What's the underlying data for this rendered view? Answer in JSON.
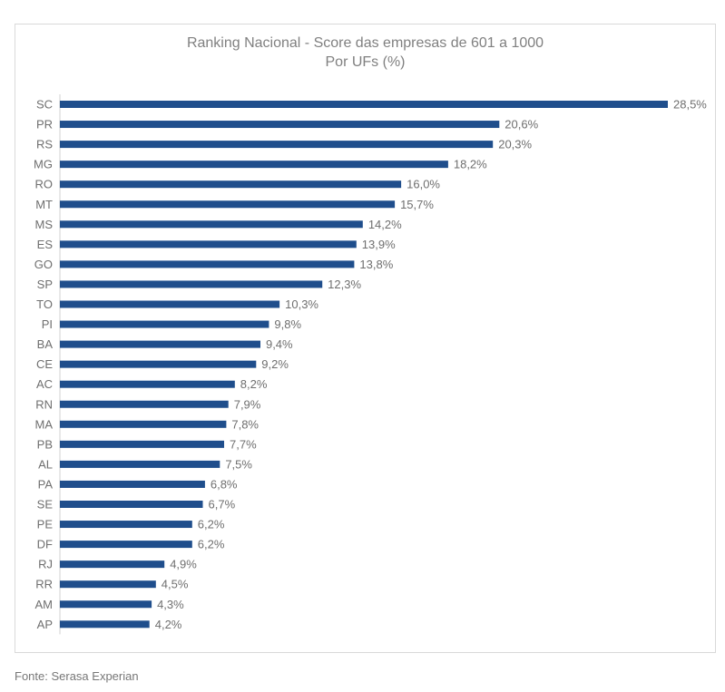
{
  "chart_data": {
    "type": "bar",
    "orientation": "horizontal",
    "title": "Ranking Nacional - Score das empresas de 601 a 1000",
    "subtitle": "Por UFs (%)",
    "categories": [
      "SC",
      "PR",
      "RS",
      "MG",
      "RO",
      "MT",
      "MS",
      "ES",
      "GO",
      "SP",
      "TO",
      "PI",
      "BA",
      "CE",
      "AC",
      "RN",
      "MA",
      "PB",
      "AL",
      "PA",
      "SE",
      "PE",
      "DF",
      "RJ",
      "RR",
      "AM",
      "AP"
    ],
    "values": [
      28.5,
      20.6,
      20.3,
      18.2,
      16.0,
      15.7,
      14.2,
      13.9,
      13.8,
      12.3,
      10.3,
      9.8,
      9.4,
      9.2,
      8.2,
      7.9,
      7.8,
      7.7,
      7.5,
      6.8,
      6.7,
      6.2,
      6.2,
      4.9,
      4.5,
      4.3,
      4.2
    ],
    "value_labels": [
      "28,5%",
      "20,6%",
      "20,3%",
      "18,2%",
      "16,0%",
      "15,7%",
      "14,2%",
      "13,9%",
      "13,8%",
      "12,3%",
      "10,3%",
      "9,8%",
      "9,4%",
      "9,2%",
      "8,2%",
      "7,9%",
      "7,8%",
      "7,7%",
      "7,5%",
      "6,8%",
      "6,7%",
      "6,2%",
      "6,2%",
      "4,9%",
      "4,5%",
      "4,3%",
      "4,2%"
    ],
    "xlim": [
      0,
      28.5
    ],
    "grid": false,
    "legend": "none",
    "bar_color": "#1f4e8c"
  },
  "footer": {
    "source": "Fonte: Serasa Experian"
  }
}
